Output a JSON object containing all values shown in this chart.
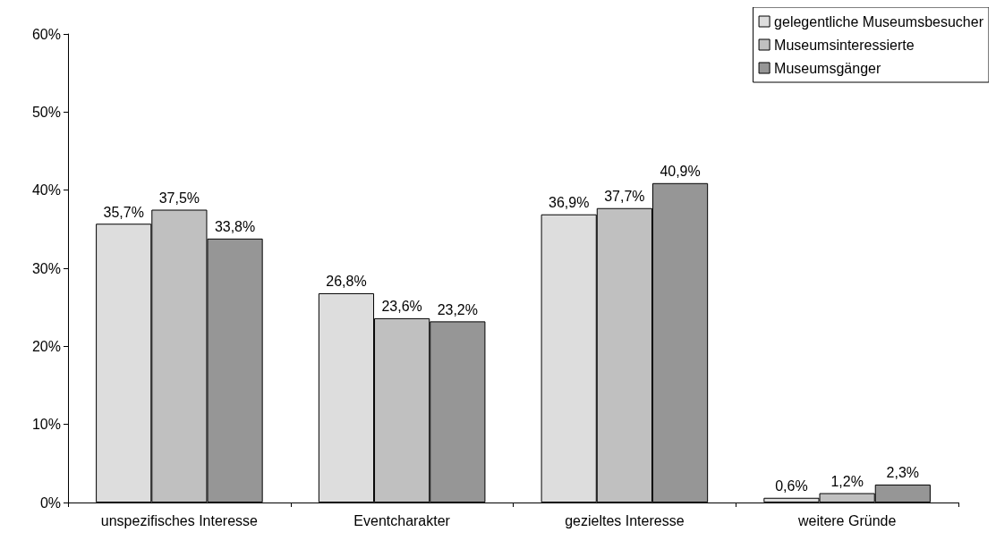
{
  "chart_data": {
    "type": "bar",
    "categories": [
      "unspezifisches Interesse",
      "Eventcharakter",
      "gezieltes Interesse",
      "weitere Gründe"
    ],
    "series": [
      {
        "name": "gelegentliche Museumsbesucher",
        "color": "#dddddd",
        "values": [
          35.7,
          26.8,
          36.9,
          0.6
        ],
        "value_labels": [
          "35,7%",
          "26,8%",
          "36,9%",
          "0,6%"
        ]
      },
      {
        "name": "Museumsinteressierte",
        "color": "#c0c0c0",
        "values": [
          37.5,
          23.6,
          37.7,
          1.2
        ],
        "value_labels": [
          "37,5%",
          "23,6%",
          "37,7%",
          "1,2%"
        ]
      },
      {
        "name": "Museumsgänger",
        "color": "#969696",
        "values": [
          33.8,
          23.2,
          40.9,
          2.3
        ],
        "value_labels": [
          "33,8%",
          "23,2%",
          "40,9%",
          "2,3%"
        ]
      }
    ],
    "ylim": [
      0,
      60
    ],
    "yticks": [
      {
        "value": 0,
        "label": "0%"
      },
      {
        "value": 10,
        "label": "10%"
      },
      {
        "value": 20,
        "label": "20%"
      },
      {
        "value": 30,
        "label": "30%"
      },
      {
        "value": 40,
        "label": "40%"
      },
      {
        "value": 50,
        "label": "50%"
      },
      {
        "value": 60,
        "label": "60%"
      }
    ],
    "grid": false,
    "legend": "top right"
  }
}
